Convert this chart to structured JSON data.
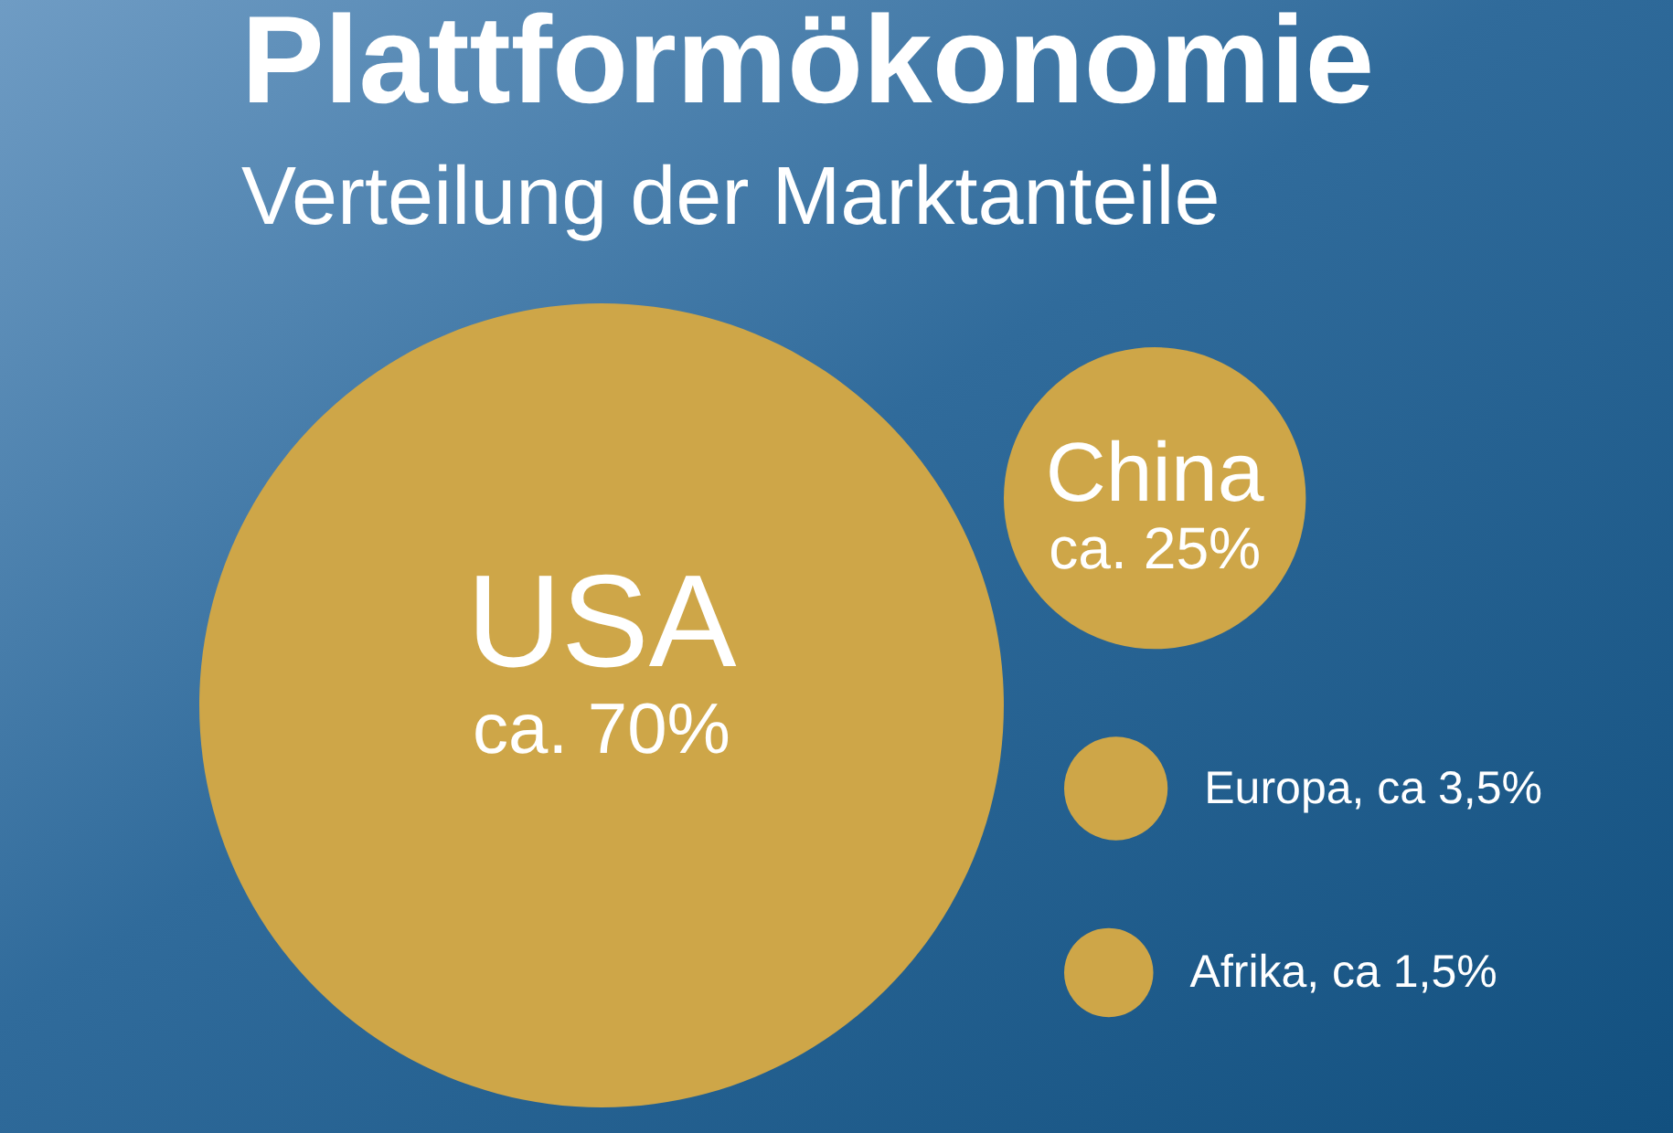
{
  "chart_data": {
    "type": "other",
    "title": "Plattformökonomie",
    "subtitle": "Verteilung der Marktanteile",
    "categories": [
      "USA",
      "China",
      "Europa",
      "Afrika"
    ],
    "values": [
      70,
      25,
      3.5,
      1.5
    ],
    "value_labels": [
      "ca. 70%",
      "ca. 25%",
      ", ca 3,5%",
      ", ca 1,5%"
    ],
    "color": "#cea648"
  }
}
